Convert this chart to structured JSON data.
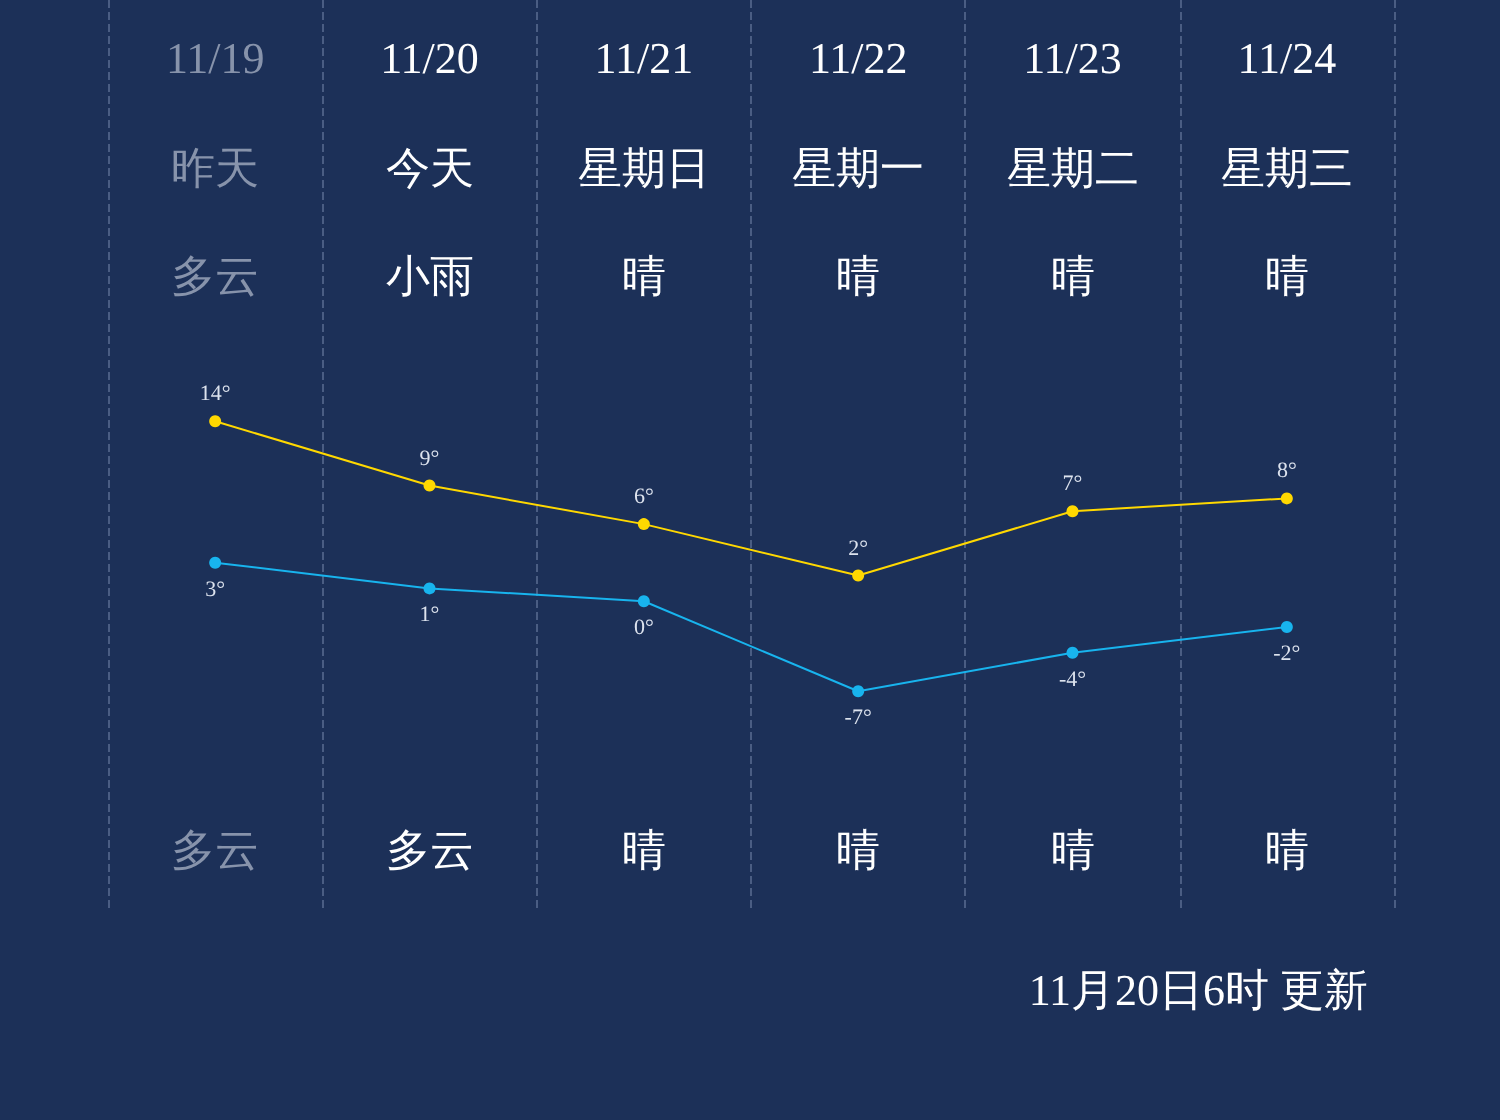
{
  "chart_data": {
    "type": "line",
    "categories": [
      "11/19",
      "11/20",
      "11/21",
      "11/22",
      "11/23",
      "11/24"
    ],
    "series": [
      {
        "color": "#ffd800",
        "values": [
          14,
          9,
          6,
          2,
          7,
          8
        ],
        "value_labels": [
          "14°",
          "9°",
          "6°",
          "2°",
          "7°",
          "8°"
        ]
      },
      {
        "color": "#18b4ee",
        "values": [
          3,
          1,
          0,
          -7,
          -4,
          -2
        ],
        "value_labels": [
          "3°",
          "1°",
          "0°",
          "-7°",
          "-4°",
          "-2°"
        ]
      }
    ],
    "annotations": [
      "昨天",
      "今天",
      "星期日",
      "星期一",
      "星期二",
      "星期三",
      "多云",
      "小雨",
      "晴",
      "晴",
      "晴",
      "晴",
      "多云",
      "多云",
      "晴",
      "晴",
      "晴",
      "晴",
      "11月20日6时 更新"
    ],
    "grid": "x",
    "marker": "circle",
    "line_style": "solid"
  }
}
